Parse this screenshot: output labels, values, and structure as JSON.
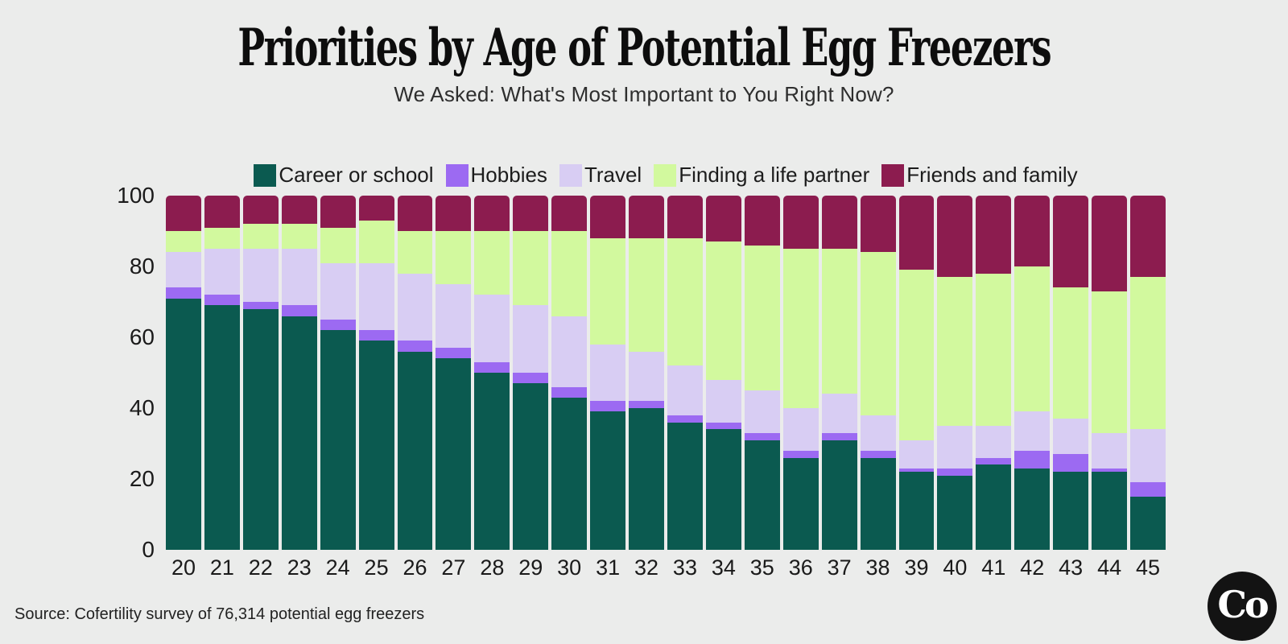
{
  "header": {
    "title": "Priorities by Age of Potential Egg Freezers",
    "subtitle": "We Asked: What's Most Important to You Right Now?"
  },
  "chart_data": {
    "type": "bar",
    "variant": "stacked-percentage",
    "title": "Priorities by Age of Potential Egg Freezers",
    "subtitle": "We Asked: What's Most Important to You Right Now?",
    "xlabel": "",
    "ylabel": "",
    "ylim": [
      0,
      100
    ],
    "yticks": [
      0,
      20,
      40,
      60,
      80,
      100
    ],
    "grid": false,
    "legend_position": "top",
    "categories": [
      20,
      21,
      22,
      23,
      24,
      25,
      26,
      27,
      28,
      29,
      30,
      31,
      32,
      33,
      34,
      35,
      36,
      37,
      38,
      39,
      40,
      41,
      42,
      43,
      44,
      45
    ],
    "series": [
      {
        "name": "Career or school",
        "color": "#0b5a50",
        "values": [
          71,
          69,
          68,
          66,
          62,
          59,
          56,
          54,
          50,
          47,
          43,
          39,
          40,
          36,
          34,
          31,
          26,
          31,
          26,
          22,
          21,
          24,
          23,
          22,
          22,
          15
        ]
      },
      {
        "name": "Hobbies",
        "color": "#9c6af2",
        "values": [
          3,
          3,
          2,
          3,
          3,
          3,
          3,
          3,
          3,
          3,
          3,
          3,
          2,
          2,
          2,
          2,
          2,
          2,
          2,
          1,
          2,
          2,
          5,
          5,
          1,
          4
        ]
      },
      {
        "name": "Travel",
        "color": "#d8cdf3",
        "values": [
          10,
          13,
          15,
          16,
          16,
          19,
          19,
          18,
          19,
          19,
          20,
          16,
          14,
          14,
          12,
          12,
          12,
          11,
          10,
          8,
          12,
          9,
          11,
          10,
          10,
          15
        ]
      },
      {
        "name": "Finding a life partner",
        "color": "#d2f99e",
        "values": [
          6,
          6,
          7,
          7,
          10,
          12,
          12,
          15,
          18,
          21,
          24,
          30,
          32,
          36,
          39,
          41,
          45,
          41,
          46,
          48,
          42,
          43,
          41,
          37,
          40,
          43
        ]
      },
      {
        "name": "Friends and family",
        "color": "#8c1c4f",
        "values": [
          10,
          9,
          8,
          8,
          9,
          7,
          10,
          10,
          10,
          10,
          10,
          12,
          12,
          12,
          13,
          14,
          15,
          15,
          16,
          21,
          23,
          22,
          20,
          26,
          27,
          23
        ]
      }
    ]
  },
  "footer": {
    "source": "Source: Cofertility survey of 76,314 potential egg freezers",
    "logo_text": "Co"
  }
}
